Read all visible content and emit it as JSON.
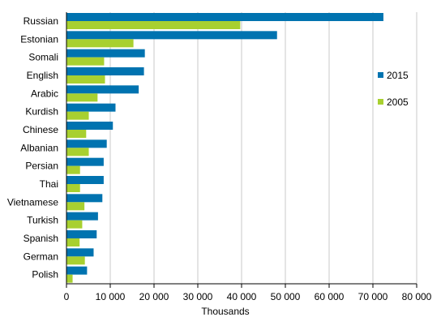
{
  "chart_data": {
    "type": "bar",
    "orientation": "horizontal",
    "title": "",
    "xlabel": "Thousands",
    "ylabel": "",
    "xlim": [
      0,
      80000
    ],
    "x_ticks": [
      0,
      10000,
      20000,
      30000,
      40000,
      50000,
      60000,
      70000,
      80000
    ],
    "x_tick_labels": [
      "0",
      "10 000",
      "20 000",
      "30 000",
      "40 000",
      "50 000",
      "60 000",
      "70 000",
      "80 000"
    ],
    "grid": "vertical",
    "legend_position": "right",
    "categories": [
      "Russian",
      "Estonian",
      "Somali",
      "English",
      "Arabic",
      "Kurdish",
      "Chinese",
      "Albanian",
      "Persian",
      "Thai",
      "Vietnamese",
      "Turkish",
      "Spanish",
      "German",
      "Polish"
    ],
    "series": [
      {
        "name": "2015",
        "color": "#0073b0",
        "values": [
          72400,
          48100,
          17900,
          17700,
          16500,
          11200,
          10600,
          9200,
          8500,
          8500,
          8200,
          7200,
          6900,
          6200,
          4700
        ]
      },
      {
        "name": "2005",
        "color": "#a8d030",
        "values": [
          39700,
          15300,
          8600,
          8800,
          7100,
          5100,
          4500,
          5100,
          3100,
          3100,
          4100,
          3600,
          3000,
          4200,
          1400
        ]
      }
    ]
  }
}
